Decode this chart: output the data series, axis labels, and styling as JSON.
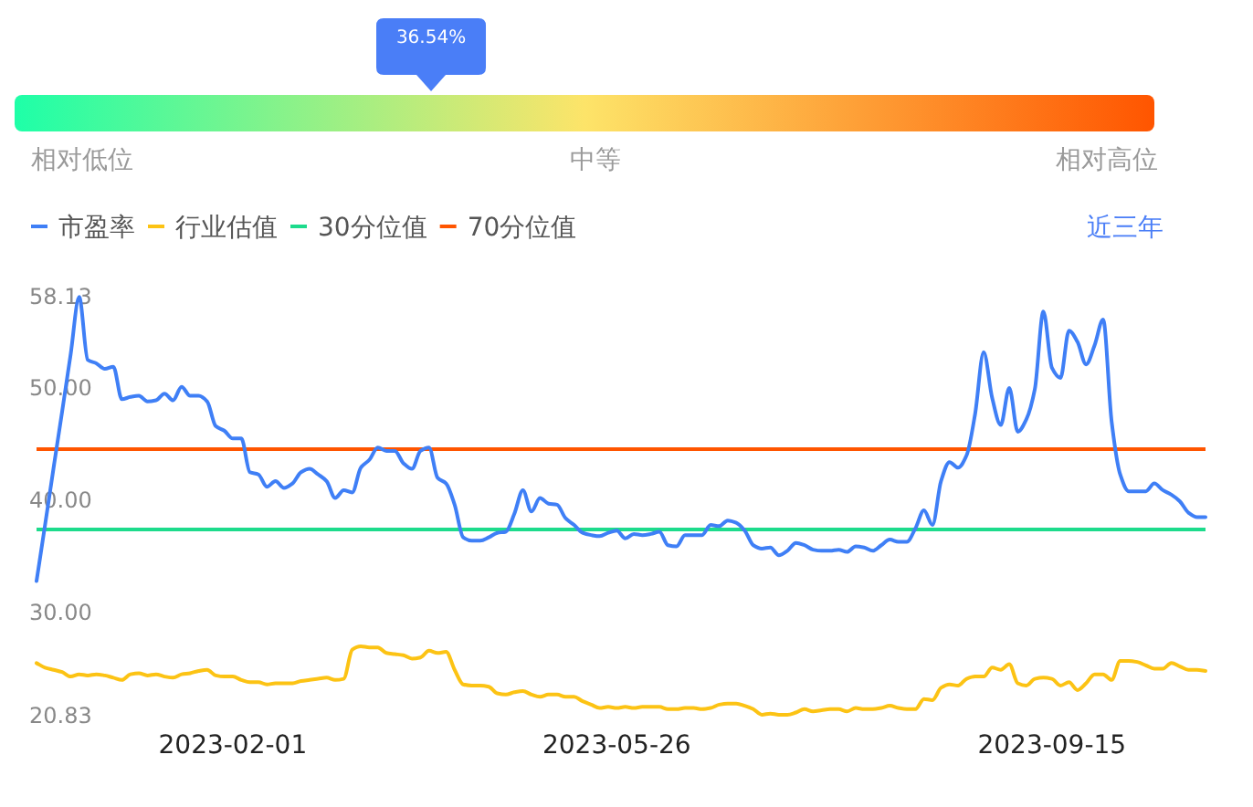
{
  "chart_data": [
    {
      "type": "other",
      "values": [
        36.54
      ],
      "value_labels": [
        "36.54%"
      ],
      "annotations": [
        "相对低位",
        "中等",
        "相对高位"
      ]
    },
    {
      "type": "line",
      "legend": "top left",
      "annotations": [
        "近三年"
      ],
      "categories": [
        null,
        null,
        null,
        null,
        null,
        null,
        null,
        null,
        null,
        null,
        null,
        null,
        null,
        null,
        null,
        null,
        null,
        null,
        null,
        null,
        null,
        null,
        null,
        "2023-02-01",
        null,
        null,
        null,
        null,
        null,
        null,
        null,
        null,
        null,
        null,
        null,
        null,
        null,
        null,
        null,
        null,
        null,
        null,
        null,
        null,
        null,
        null,
        null,
        null,
        null,
        null,
        null,
        null,
        null,
        null,
        null,
        null,
        null,
        null,
        null,
        null,
        null,
        null,
        null,
        null,
        null,
        null,
        null,
        null,
        "2023-05-26",
        null,
        null,
        null,
        null,
        null,
        null,
        null,
        null,
        null,
        null,
        null,
        null,
        null,
        null,
        null,
        null,
        null,
        null,
        null,
        null,
        null,
        null,
        null,
        null,
        null,
        null,
        null,
        null,
        null,
        null,
        null,
        null,
        null,
        null,
        null,
        null,
        null,
        null,
        null,
        null,
        null,
        null,
        null,
        null,
        null,
        null,
        null,
        null,
        null,
        null,
        "2023-09-15",
        null,
        null,
        null,
        null,
        null,
        null,
        null,
        null,
        null,
        null,
        null,
        null,
        null,
        null,
        null,
        null,
        null,
        null
      ],
      "ylim": [
        20.83,
        58.13
      ],
      "yticks": [
        20.83,
        {
          "value": 30,
          "label": "30.00"
        },
        {
          "value": 40,
          "label": "40.00"
        },
        {
          "value": 50,
          "label": "50.00"
        },
        58.13
      ],
      "series": [
        {
          "name": "市盈率",
          "color": "#3f7ff6",
          "values": [
            32.8,
            37.8,
            42.9,
            47.9,
            53.0,
            58.1,
            52.5,
            52.2,
            51.7,
            51.9,
            49.0,
            49.2,
            49.3,
            48.8,
            48.9,
            49.5,
            48.9,
            50.1,
            49.3,
            49.3,
            48.8,
            46.6,
            46.2,
            45.5,
            45.5,
            42.5,
            42.3,
            41.2,
            41.7,
            41.1,
            41.5,
            42.5,
            42.8,
            42.3,
            41.7,
            40.2,
            40.9,
            40.7,
            42.9,
            43.6,
            44.7,
            44.4,
            44.4,
            43.3,
            42.8,
            44.4,
            44.7,
            42.0,
            41.5,
            39.6,
            36.7,
            36.4,
            36.4,
            36.7,
            37.1,
            37.2,
            38.8,
            40.9,
            39.0,
            40.2,
            39.7,
            39.6,
            38.4,
            37.8,
            37.1,
            36.9,
            36.8,
            37.1,
            37.3,
            36.6,
            37.0,
            36.9,
            37.0,
            37.2,
            36.0,
            35.9,
            36.9,
            36.9,
            36.9,
            37.8,
            37.7,
            38.2,
            38.0,
            37.3,
            36.0,
            35.7,
            35.8,
            35.1,
            35.5,
            36.2,
            36.0,
            35.6,
            35.5,
            35.5,
            35.6,
            35.4,
            35.9,
            35.8,
            35.5,
            36.0,
            36.5,
            36.3,
            36.3,
            37.5,
            39.1,
            37.8,
            41.7,
            43.4,
            42.9,
            44.0,
            47.7,
            53.2,
            49.1,
            46.7,
            50.0,
            46.1,
            47.2,
            49.9,
            56.8,
            51.8,
            50.9,
            55.1,
            54.1,
            52.1,
            53.8,
            56.1,
            47.0,
            42.3,
            40.8,
            40.8,
            40.8,
            41.5,
            40.9,
            40.5,
            39.9,
            38.9,
            38.5,
            38.5
          ]
        },
        {
          "name": "行业估值",
          "color": "#fcc314",
          "values": [
            25.5,
            25.1,
            24.9,
            24.7,
            24.3,
            24.5,
            24.4,
            24.5,
            24.4,
            24.2,
            24.0,
            24.5,
            24.6,
            24.4,
            24.5,
            24.3,
            24.2,
            24.5,
            24.6,
            24.8,
            24.9,
            24.4,
            24.3,
            24.3,
            24.0,
            23.8,
            23.8,
            23.6,
            23.7,
            23.7,
            23.7,
            23.9,
            24.0,
            24.1,
            24.2,
            24.0,
            24.1,
            26.7,
            27.0,
            26.9,
            26.9,
            26.4,
            26.3,
            26.2,
            25.9,
            26.0,
            26.6,
            26.4,
            26.5,
            24.9,
            23.6,
            23.5,
            23.5,
            23.4,
            22.8,
            22.7,
            22.9,
            23.0,
            22.7,
            22.5,
            22.7,
            22.7,
            22.5,
            22.5,
            22.1,
            21.8,
            21.5,
            21.6,
            21.5,
            21.6,
            21.5,
            21.6,
            21.6,
            21.6,
            21.4,
            21.4,
            21.5,
            21.5,
            21.4,
            21.5,
            21.8,
            21.9,
            21.9,
            21.7,
            21.4,
            20.9,
            21.0,
            20.9,
            20.9,
            21.1,
            21.4,
            21.2,
            21.3,
            21.4,
            21.4,
            21.2,
            21.5,
            21.4,
            21.4,
            21.5,
            21.7,
            21.5,
            21.4,
            21.4,
            22.3,
            22.2,
            23.3,
            23.6,
            23.5,
            24.1,
            24.3,
            24.3,
            25.1,
            24.9,
            25.4,
            23.7,
            23.5,
            24.1,
            24.2,
            24.1,
            23.5,
            23.8,
            23.1,
            23.7,
            24.5,
            24.5,
            24.0,
            25.7,
            25.7,
            25.6,
            25.3,
            25.0,
            25.0,
            25.5,
            25.2,
            24.9,
            24.9,
            24.8
          ]
        }
      ],
      "ref_lines": [
        {
          "axis": "y",
          "value": 37.4,
          "label": "30分位值",
          "color": "#1ddb8c"
        },
        {
          "axis": "y",
          "value": 44.55,
          "label": "70分位值",
          "color": "#ff5500"
        }
      ]
    }
  ]
}
